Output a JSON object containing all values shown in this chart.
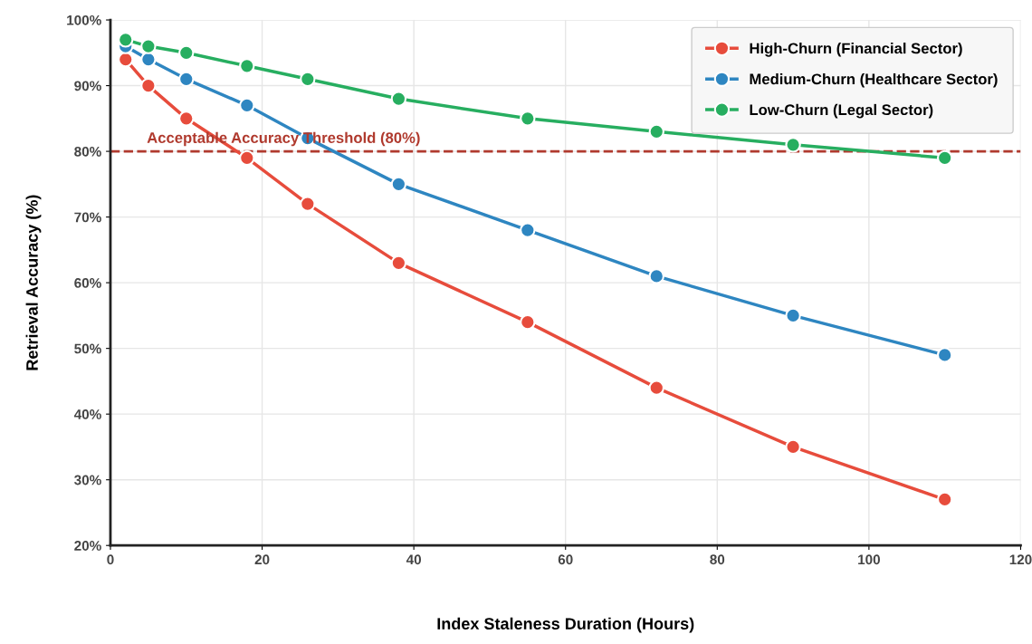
{
  "chart_data": {
    "type": "line",
    "xlabel": "Index Staleness Duration (Hours)",
    "ylabel": "Retrieval Accuracy (%)",
    "x": [
      2,
      5,
      10,
      18,
      26,
      38,
      55,
      72,
      90,
      110
    ],
    "series": [
      {
        "name": "High-Churn (Financial Sector)",
        "color": "#e74c3c",
        "values": [
          94,
          90,
          85,
          79,
          72,
          63,
          54,
          44,
          35,
          27
        ]
      },
      {
        "name": "Medium-Churn (Healthcare Sector)",
        "color": "#2e86c1",
        "values": [
          96,
          94,
          91,
          87,
          82,
          75,
          68,
          61,
          55,
          49
        ]
      },
      {
        "name": "Low-Churn (Legal Sector)",
        "color": "#27ae60",
        "values": [
          97,
          96,
          95,
          93,
          91,
          88,
          85,
          83,
          81,
          79
        ]
      }
    ],
    "xlim": [
      0,
      120
    ],
    "xticks": [
      0,
      20,
      40,
      60,
      80,
      100,
      120
    ],
    "ylim": [
      20,
      100
    ],
    "yticks": [
      {
        "value": 20,
        "label": "20%"
      },
      {
        "value": 30,
        "label": "30%"
      },
      {
        "value": 40,
        "label": "40%"
      },
      {
        "value": 50,
        "label": "50%"
      },
      {
        "value": 60,
        "label": "60%"
      },
      {
        "value": 70,
        "label": "70%"
      },
      {
        "value": 80,
        "label": "80%"
      },
      {
        "value": 90,
        "label": "90%"
      },
      {
        "value": 100,
        "label": "100%"
      }
    ],
    "ref_lines": [
      {
        "axis": "y",
        "value": 80,
        "label": "Acceptable Accuracy Threshold (80%)",
        "color": "#b03a2e",
        "line_style": "dashed"
      }
    ],
    "grid": true,
    "legend": "top right",
    "marker": "circle",
    "line_style": "solid"
  }
}
